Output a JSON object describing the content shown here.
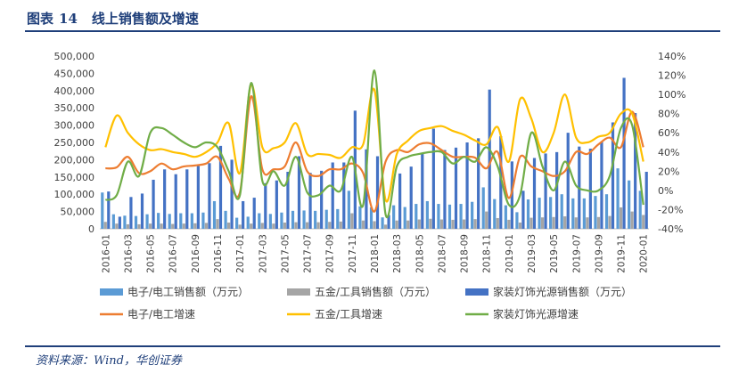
{
  "header": {
    "figure_label": "图表",
    "figure_number": "14",
    "title": "线上销售额及增速"
  },
  "source": "资料来源：Wind，华创证券",
  "colors": {
    "elec_bar": "#5b9bd5",
    "tool_bar": "#a5a5a5",
    "home_bar": "#4472c4",
    "elec_line": "#ed7d31",
    "tool_line": "#ffc000",
    "home_line": "#70ad47",
    "title": "#1f3f7a"
  },
  "chart_data": {
    "type": "bar+line",
    "title": "线上销售额及增速",
    "x": [
      "2016-01",
      "2016-02",
      "2016-03",
      "2016-04",
      "2016-05",
      "2016-06",
      "2016-07",
      "2016-08",
      "2016-09",
      "2016-10",
      "2016-11",
      "2016-12",
      "2017-01",
      "2017-02",
      "2017-03",
      "2017-04",
      "2017-05",
      "2017-06",
      "2017-07",
      "2017-08",
      "2017-09",
      "2017-10",
      "2017-11",
      "2017-12",
      "2018-01",
      "2018-02",
      "2018-03",
      "2018-04",
      "2018-05",
      "2018-06",
      "2018-07",
      "2018-08",
      "2018-09",
      "2018-10",
      "2018-11",
      "2018-12",
      "2019-01",
      "2019-02",
      "2019-03",
      "2019-04",
      "2019-05",
      "2019-06",
      "2019-07",
      "2019-08",
      "2019-09",
      "2019-10",
      "2019-11",
      "2019-12",
      "2020-01"
    ],
    "x_tick_labels": [
      "2016-01",
      "2016-03",
      "2016-05",
      "2016-07",
      "2016-09",
      "2016-11",
      "2017-01",
      "2017-03",
      "2017-05",
      "2017-07",
      "2017-09",
      "2017-11",
      "2018-01",
      "2018-03",
      "2018-05",
      "2018-07",
      "2018-09",
      "2018-11",
      "2019-01",
      "2019-03",
      "2019-05",
      "2019-07",
      "2019-09",
      "2019-11",
      "2020-01"
    ],
    "y_left": {
      "min": 0,
      "max": 500000,
      "step": 50000,
      "tick_labels": [
        "0",
        "50,000",
        "100,000",
        "150,000",
        "200,000",
        "250,000",
        "300,000",
        "350,000",
        "400,000",
        "450,000",
        "500,000"
      ]
    },
    "y_right": {
      "min": -40,
      "max": 140,
      "step": 20,
      "unit": "%",
      "tick_labels": [
        "-40%",
        "-20%",
        "0%",
        "20%",
        "40%",
        "60%",
        "80%",
        "100%",
        "120%",
        "140%"
      ]
    },
    "bar_series": [
      {
        "name": "电子/电工销售额（万元）",
        "axis": "left",
        "values": [
          105000,
          42000,
          38000,
          37000,
          42000,
          46000,
          43000,
          45000,
          45000,
          47000,
          80000,
          52000,
          32000,
          35000,
          45000,
          43000,
          47000,
          52000,
          53000,
          52000,
          55000,
          57000,
          110000,
          65000,
          62000,
          33000,
          68000,
          63000,
          72000,
          80000,
          72000,
          70000,
          72000,
          78000,
          120000,
          86000,
          68000,
          48000,
          85000,
          90000,
          92000,
          100000,
          88000,
          88000,
          95000,
          100000,
          175000,
          140000,
          110000
        ]
      },
      {
        "name": "五金/工具销售额（万元）",
        "axis": "left",
        "values": [
          20000,
          15000,
          13000,
          13000,
          15000,
          15000,
          14000,
          15000,
          16000,
          17000,
          28000,
          18000,
          12000,
          15000,
          17000,
          15000,
          18000,
          19000,
          19000,
          19000,
          20000,
          21000,
          45000,
          24000,
          22000,
          12000,
          24000,
          24000,
          27000,
          29000,
          27000,
          26000,
          27000,
          28000,
          50000,
          31000,
          26000,
          18000,
          32000,
          33000,
          34000,
          36000,
          33000,
          33000,
          34000,
          37000,
          62000,
          50000,
          40000
        ]
      },
      {
        "name": "家装灯饰光源销售额（万元）",
        "axis": "left",
        "values": [
          108000,
          35000,
          92000,
          102000,
          142000,
          172000,
          158000,
          172000,
          182000,
          190000,
          240000,
          200000,
          80000,
          90000,
          132000,
          140000,
          165000,
          210000,
          162000,
          168000,
          192000,
          192000,
          342000,
          230000,
          210000,
          40000,
          160000,
          180000,
          220000,
          290000,
          228000,
          235000,
          250000,
          262000,
          403000,
          268000,
          195000,
          110000,
          205000,
          218000,
          222000,
          278000,
          238000,
          232000,
          252000,
          308000,
          437000,
          335000,
          165000
        ]
      }
    ],
    "line_series": [
      {
        "name": "电子/电工增速",
        "axis": "right",
        "values": [
          23,
          24,
          35,
          18,
          20,
          28,
          22,
          25,
          26,
          28,
          35,
          12,
          -2,
          98,
          22,
          22,
          25,
          50,
          20,
          15,
          22,
          22,
          28,
          18,
          -22,
          30,
          42,
          40,
          48,
          49,
          42,
          35,
          35,
          34,
          23,
          40,
          -8,
          35,
          25,
          20,
          15,
          20,
          40,
          38,
          48,
          55,
          45,
          82,
          45
        ]
      },
      {
        "name": "五金/工具增速",
        "axis": "right",
        "values": [
          45,
          78,
          60,
          48,
          42,
          43,
          40,
          38,
          35,
          40,
          50,
          70,
          18,
          110,
          45,
          44,
          50,
          70,
          38,
          38,
          37,
          34,
          45,
          48,
          105,
          -10,
          38,
          52,
          62,
          65,
          67,
          62,
          58,
          52,
          48,
          66,
          30,
          95,
          75,
          40,
          60,
          100,
          55,
          50,
          56,
          60,
          80,
          80,
          30
        ]
      },
      {
        "name": "家装灯饰光源增速",
        "axis": "right",
        "values": [
          -10,
          -5,
          30,
          15,
          60,
          65,
          58,
          50,
          45,
          50,
          45,
          20,
          -5,
          112,
          10,
          20,
          5,
          35,
          -2,
          -5,
          5,
          0,
          35,
          -15,
          125,
          -25,
          25,
          35,
          38,
          40,
          40,
          28,
          35,
          30,
          45,
          25,
          -15,
          -5,
          60,
          25,
          0,
          30,
          5,
          0,
          0,
          15,
          65,
          68,
          -15
        ]
      }
    ],
    "legend": [
      "电子/电工销售额（万元）",
      "五金/工具销售额（万元）",
      "家装灯饰光源销售额（万元）",
      "电子/电工增速",
      "五金/工具增速",
      "家装灯饰光源增速"
    ]
  }
}
